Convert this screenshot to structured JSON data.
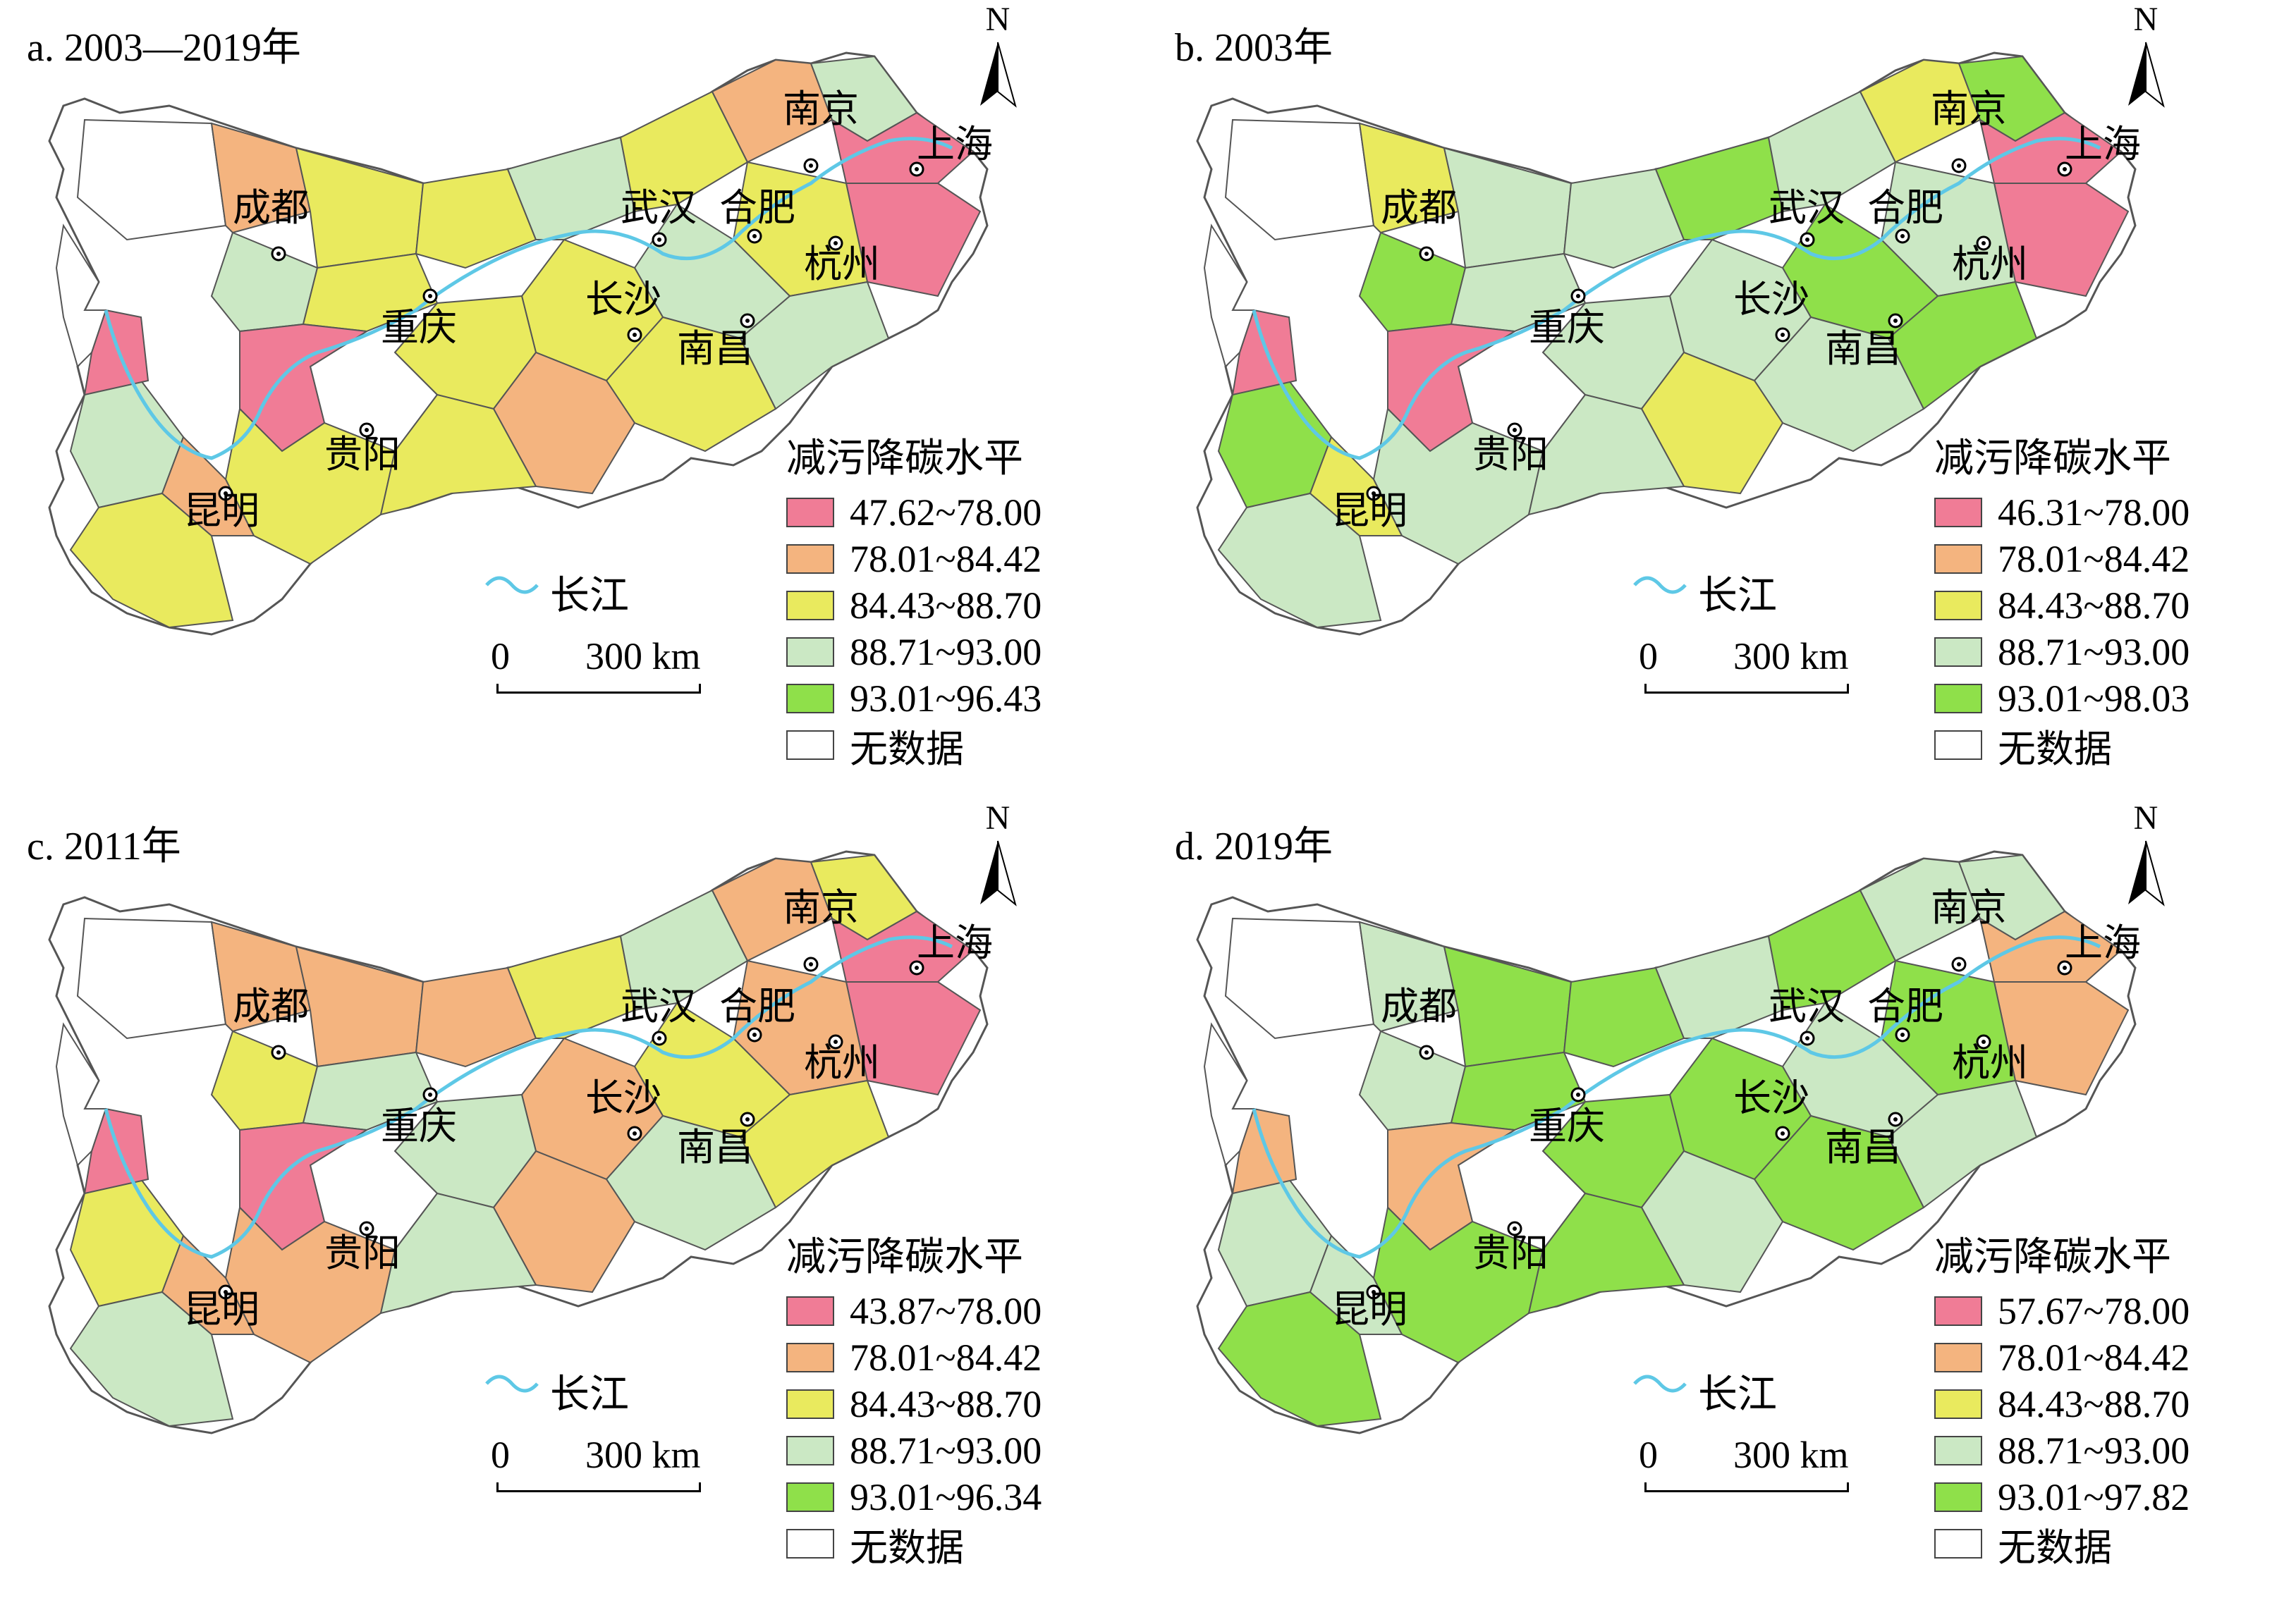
{
  "colors": {
    "class1": "#f07c96",
    "class2": "#f4b47f",
    "class3": "#e9ea5e",
    "class4": "#cbe8c4",
    "class5": "#8fe04a",
    "nodata": "#ffffff",
    "river": "#5ec8e6",
    "border": "#555555"
  },
  "north_label": "N",
  "river_label": "长江",
  "scale": {
    "zero": "0",
    "distance": "300 km"
  },
  "legend_title": "减污降碳水平",
  "nodata_label": "无数据",
  "cities": {
    "chengdu": "成都",
    "chongqing": "重庆",
    "wuhan": "武汉",
    "hefei": "合肥",
    "nanjing": "南京",
    "shanghai": "上海",
    "hangzhou": "杭州",
    "changsha": "长沙",
    "nanchang": "南昌",
    "guiyang": "贵阳",
    "kunming": "昆明"
  },
  "panels": [
    {
      "title": "a. 2003—2019年",
      "classes": [
        "47.62~78.00",
        "78.01~84.42",
        "84.43~88.70",
        "88.71~93.00",
        "93.01~96.43"
      ],
      "dominant": "class3"
    },
    {
      "title": "b. 2003年",
      "classes": [
        "46.31~78.00",
        "78.01~84.42",
        "84.43~88.70",
        "88.71~93.00",
        "93.01~98.03"
      ],
      "dominant": "class4"
    },
    {
      "title": "c. 2011年",
      "classes": [
        "43.87~78.00",
        "78.01~84.42",
        "84.43~88.70",
        "88.71~93.00",
        "93.01~96.34"
      ],
      "dominant": "class2"
    },
    {
      "title": "d. 2019年",
      "classes": [
        "57.67~78.00",
        "78.01~84.42",
        "84.43~88.70",
        "88.71~93.00",
        "93.01~97.82"
      ],
      "dominant": "class5"
    }
  ]
}
